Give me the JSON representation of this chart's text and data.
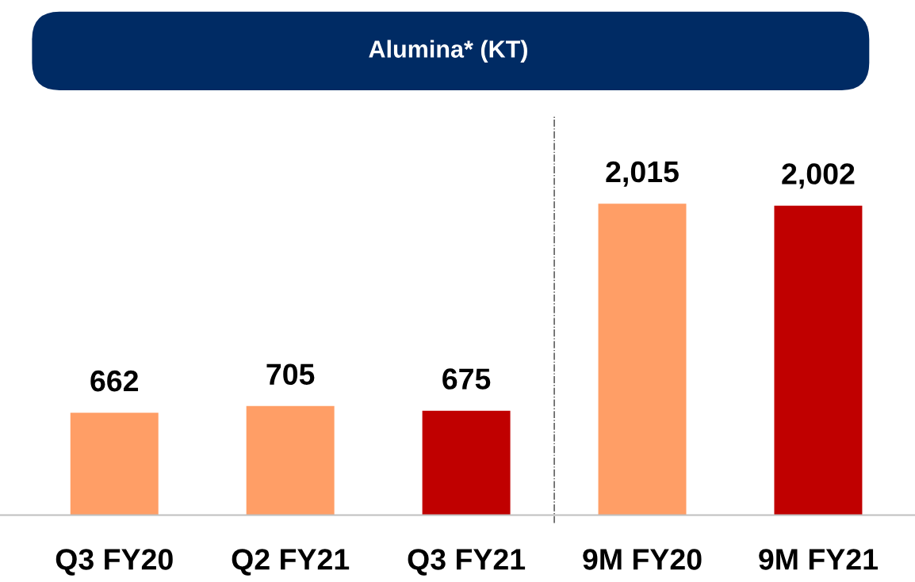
{
  "chart_data": {
    "type": "bar",
    "title": "Alumina* (KT)",
    "categories": [
      "Q3 FY20",
      "Q2 FY21",
      "Q3 FY21",
      "9M FY20",
      "9M FY21"
    ],
    "values": [
      662,
      705,
      675,
      2015,
      2002
    ],
    "value_labels": [
      "662",
      "705",
      "675",
      "2,015",
      "2,002"
    ],
    "colors": [
      "#ff9e66",
      "#ff9e66",
      "#c00000",
      "#ff9e66",
      "#c00000"
    ],
    "grid": false,
    "legend": false
  }
}
